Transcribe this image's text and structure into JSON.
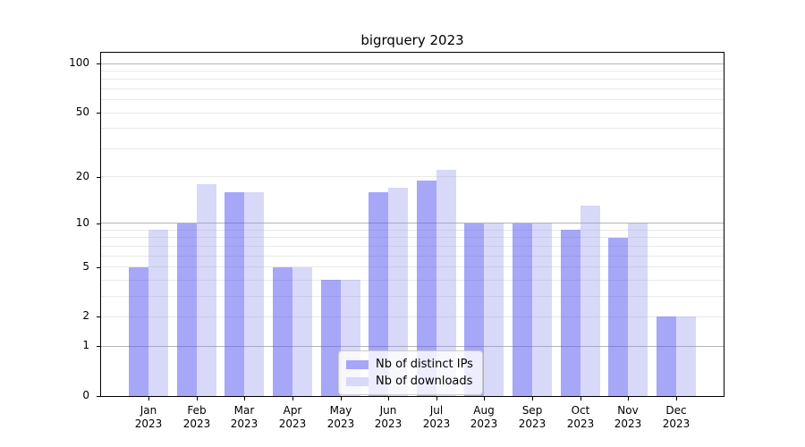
{
  "chart_data": {
    "type": "bar",
    "title": "bigrquery 2023",
    "categories": [
      "Jan",
      "Feb",
      "Mar",
      "Apr",
      "May",
      "Jun",
      "Jul",
      "Aug",
      "Sep",
      "Oct",
      "Nov",
      "Dec"
    ],
    "year_label": "2023",
    "series": [
      {
        "key": "distinct-ips",
        "name": "Nb of distinct IPs",
        "color": "#a6a6f9",
        "fill": "rgba(95,95,243,0.55)",
        "values": [
          5,
          10,
          16,
          5,
          4,
          16,
          19,
          10,
          10,
          9,
          8,
          2
        ]
      },
      {
        "key": "downloads",
        "name": "Nb of downloads",
        "color": "#d8d8f9",
        "fill": "rgba(150,150,240,0.37)",
        "values": [
          9,
          18,
          16,
          5,
          4,
          17,
          22,
          10,
          10,
          13,
          10,
          2
        ]
      }
    ],
    "yscale": "log1p",
    "ylim": [
      0,
      100
    ],
    "yticks": [
      100,
      50,
      20,
      10,
      5,
      2,
      1,
      0
    ],
    "grid_major": [
      1,
      10,
      100
    ],
    "grid_minor": [
      2,
      3,
      4,
      5,
      6,
      7,
      8,
      9,
      20,
      30,
      40,
      50,
      60,
      70,
      80,
      90
    ],
    "grid": "on",
    "legend_position": "lower center",
    "xlabel": "",
    "ylabel": ""
  }
}
